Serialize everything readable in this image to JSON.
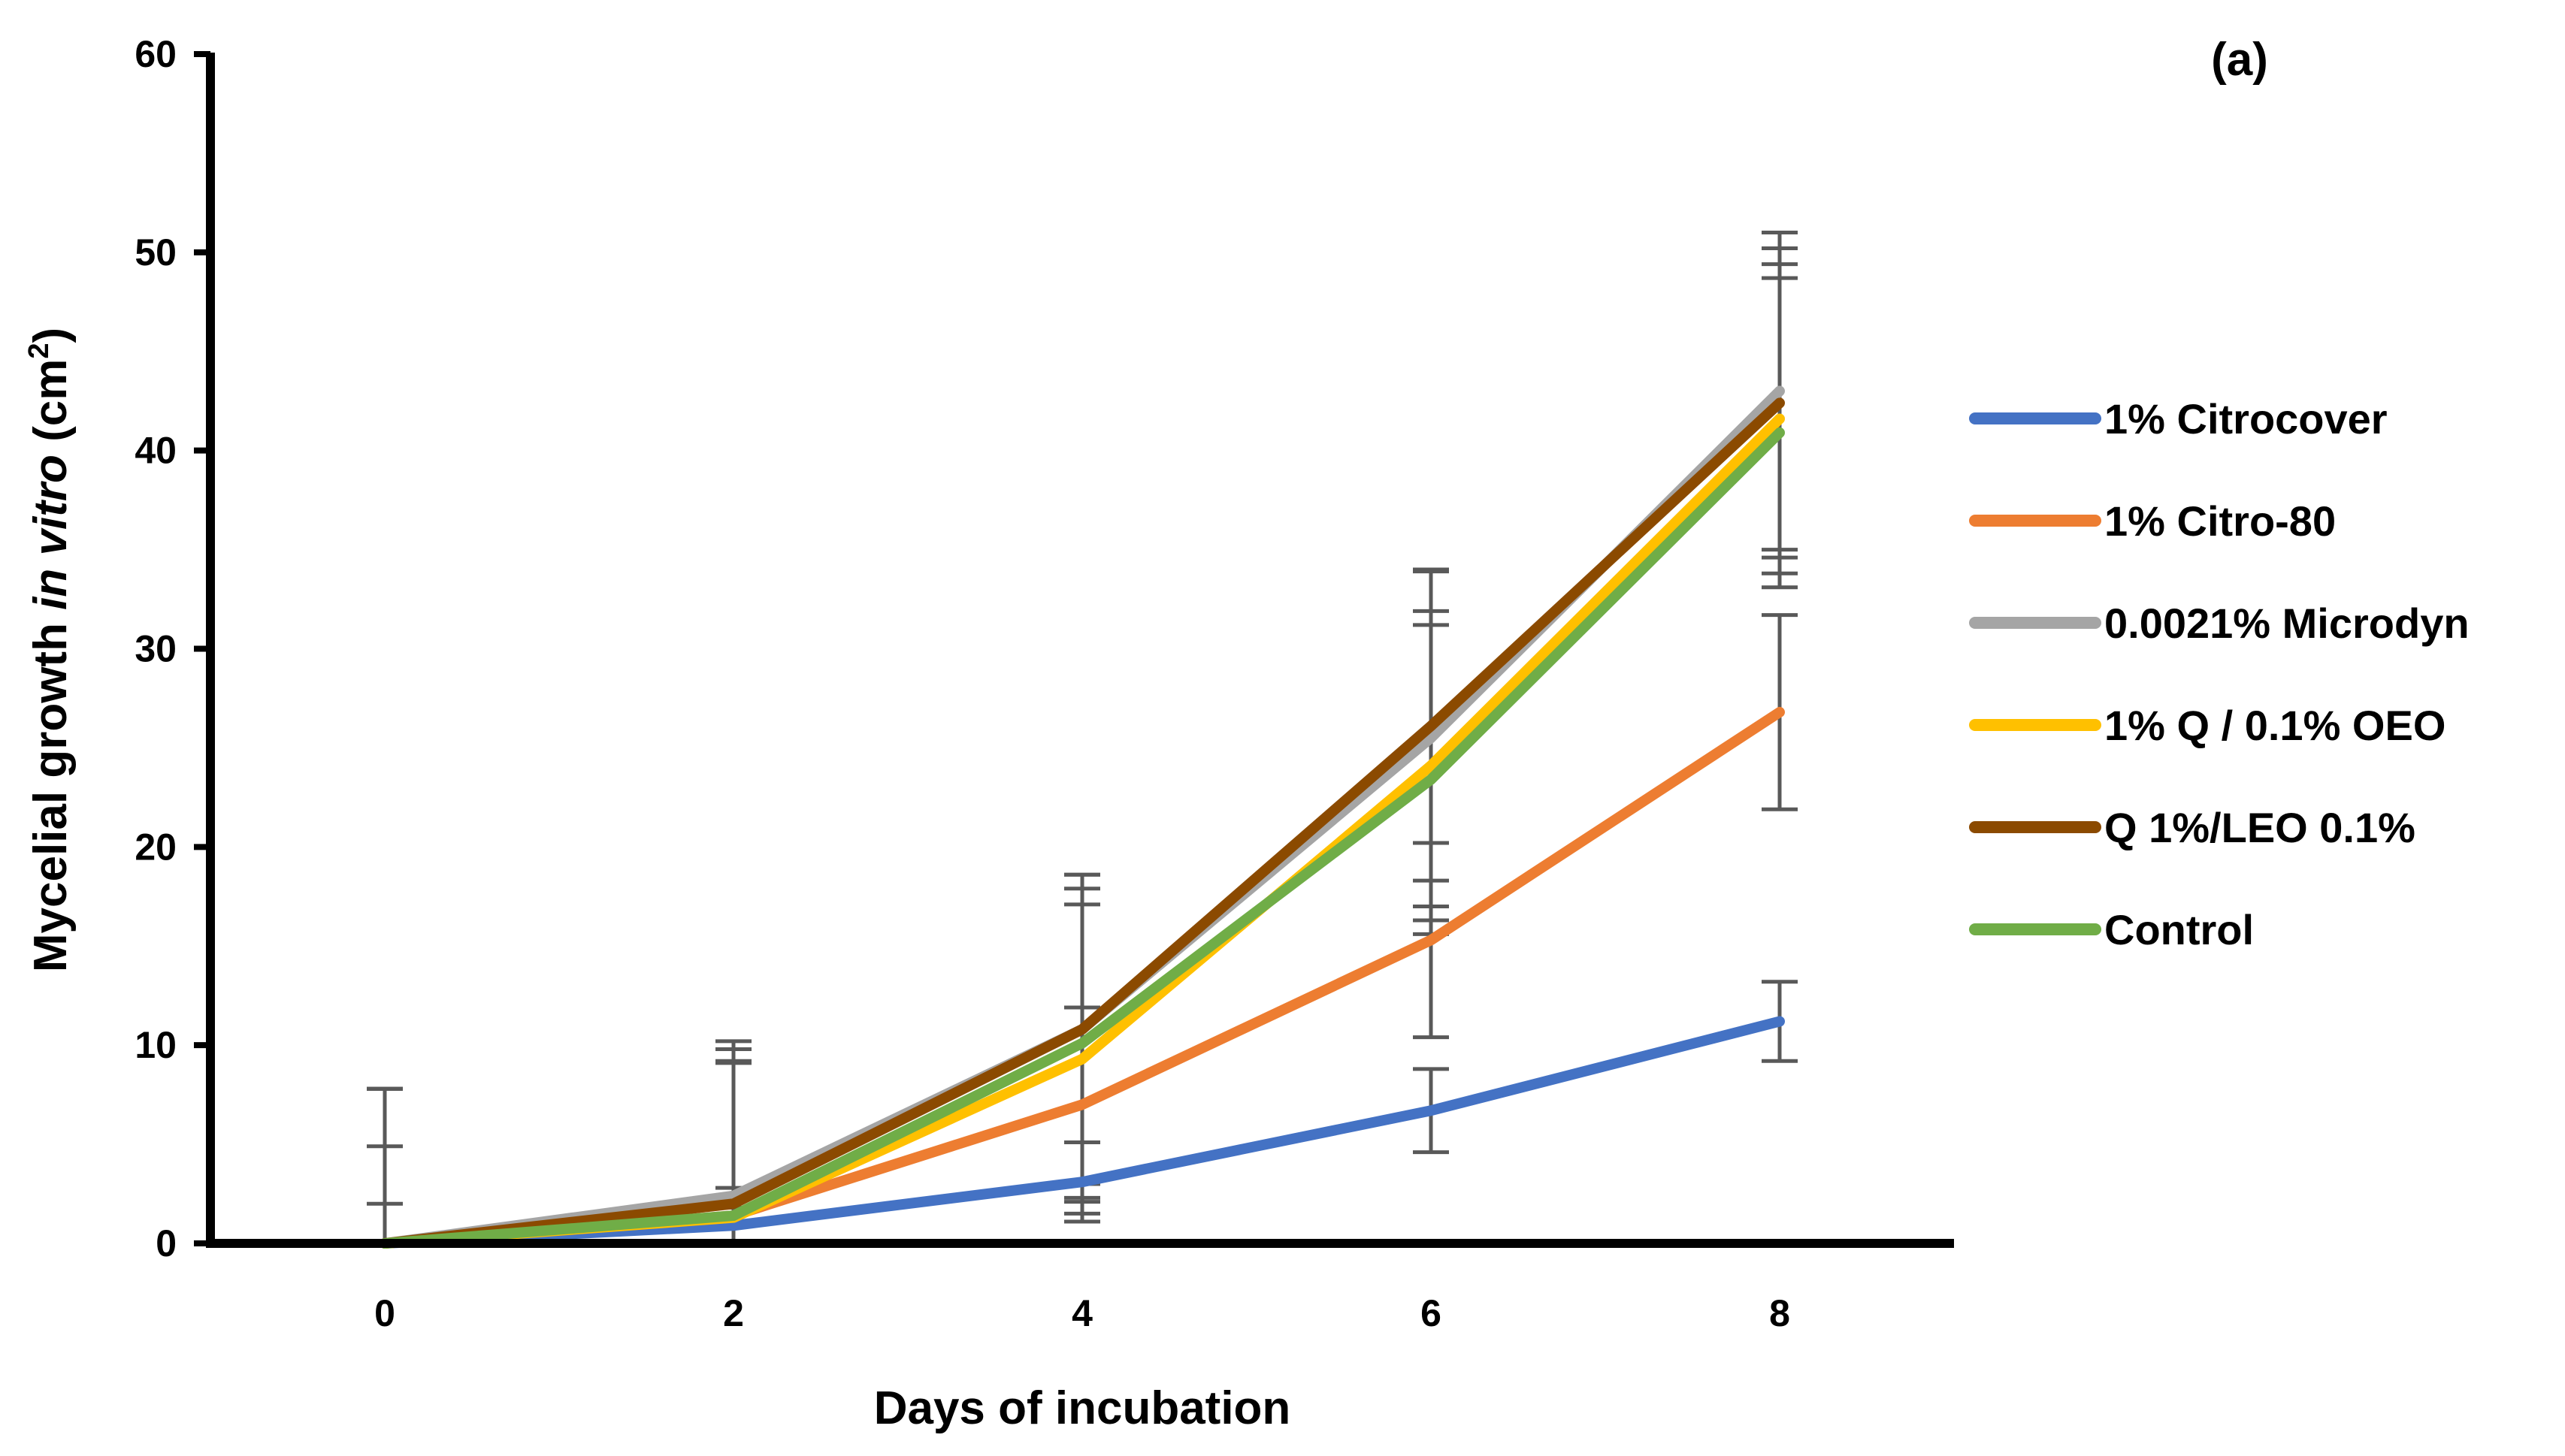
{
  "chart_data": {
    "type": "line",
    "panel_label": "(a)",
    "title": "",
    "xlabel": "Days of incubation",
    "ylabel_parts": {
      "pre": "Mycelial growth ",
      "italic": "in vitro",
      "unit_open": " (cm",
      "unit_sup": "2",
      "unit_close": ")"
    },
    "x": [
      0,
      2,
      4,
      6,
      8
    ],
    "x_tick_labels": [
      "0",
      "2",
      "4",
      "6",
      "8"
    ],
    "y_ticks": [
      0,
      10,
      20,
      30,
      40,
      50,
      60
    ],
    "y_tick_labels": [
      "0",
      "10",
      "20",
      "30",
      "40",
      "50",
      "60"
    ],
    "xlim": [
      -1,
      9
    ],
    "ylim": [
      0,
      60
    ],
    "legend_position": "right",
    "series": [
      {
        "name": "1% Citrocover",
        "color": "#4472C4",
        "values": [
          0,
          0.9,
          3.1,
          6.7,
          11.2
        ],
        "errors": [
          2.0,
          0.9,
          2.0,
          2.1,
          2.0
        ]
      },
      {
        "name": "1% Citro-80",
        "color": "#ED7D31",
        "values": [
          0,
          1.4,
          7.0,
          15.3,
          26.8
        ],
        "errors": [
          4.9,
          1.4,
          4.9,
          4.9,
          4.9
        ]
      },
      {
        "name": "0.0021% Microdyn",
        "color": "#A5A5A5",
        "values": [
          0,
          2.4,
          10.8,
          25.5,
          43.0
        ],
        "errors": [
          7.8,
          7.8,
          7.8,
          8.5,
          8.0
        ]
      },
      {
        "name": "1% Q / 0.1% OEO",
        "color": "#FFC000",
        "values": [
          0,
          1.3,
          9.3,
          24.1,
          41.6
        ],
        "errors": [
          7.8,
          7.8,
          7.8,
          7.8,
          7.8
        ]
      },
      {
        "name": "Q 1%/LEO 0.1%",
        "color": "#8B4A00",
        "values": [
          0,
          2.0,
          10.8,
          26.1,
          42.4
        ],
        "errors": [
          7.8,
          7.8,
          7.8,
          7.8,
          7.8
        ]
      },
      {
        "name": "Control",
        "color": "#70AD47",
        "values": [
          0,
          1.4,
          10.1,
          23.4,
          40.9
        ],
        "errors": [
          7.8,
          7.8,
          7.8,
          7.8,
          7.8
        ]
      }
    ],
    "error_bar_color": "#595959",
    "axis_color": "#000000"
  }
}
